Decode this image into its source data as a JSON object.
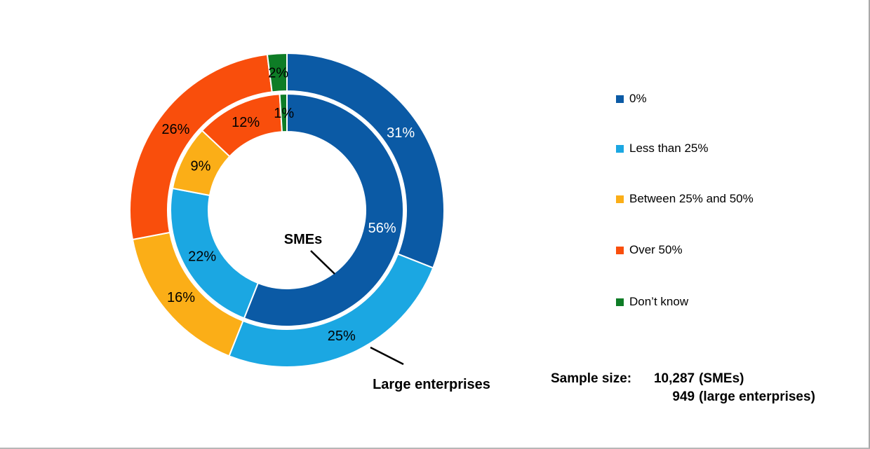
{
  "chart_data": {
    "type": "donut",
    "title": "",
    "categories": [
      "0%",
      "Less than 25%",
      "Between 25% and 50%",
      "Over 50%",
      "Don’t know"
    ],
    "colors": [
      "#0B5AA5",
      "#1BA7E2",
      "#FBAE17",
      "#F94E0C",
      "#0E7C26"
    ],
    "segment_label_colors": [
      "#ffffff",
      "#000000",
      "#000000",
      "#000000",
      "#000000"
    ],
    "label_format": "percent",
    "legend_position": "right",
    "series": [
      {
        "name": "SMEs",
        "ring": "inner",
        "values": [
          56,
          22,
          9,
          12,
          1
        ]
      },
      {
        "name": "Large enterprises",
        "ring": "outer",
        "values": [
          31,
          25,
          16,
          26,
          2
        ]
      }
    ]
  },
  "annotations": {
    "sme_label": "SMEs",
    "large_label": "Large enterprises"
  },
  "sample": {
    "label": "Sample size:",
    "lines": [
      {
        "value": "10,287",
        "suffix": "(SMEs)"
      },
      {
        "value": "949",
        "suffix": "(large enterprises)"
      }
    ]
  }
}
